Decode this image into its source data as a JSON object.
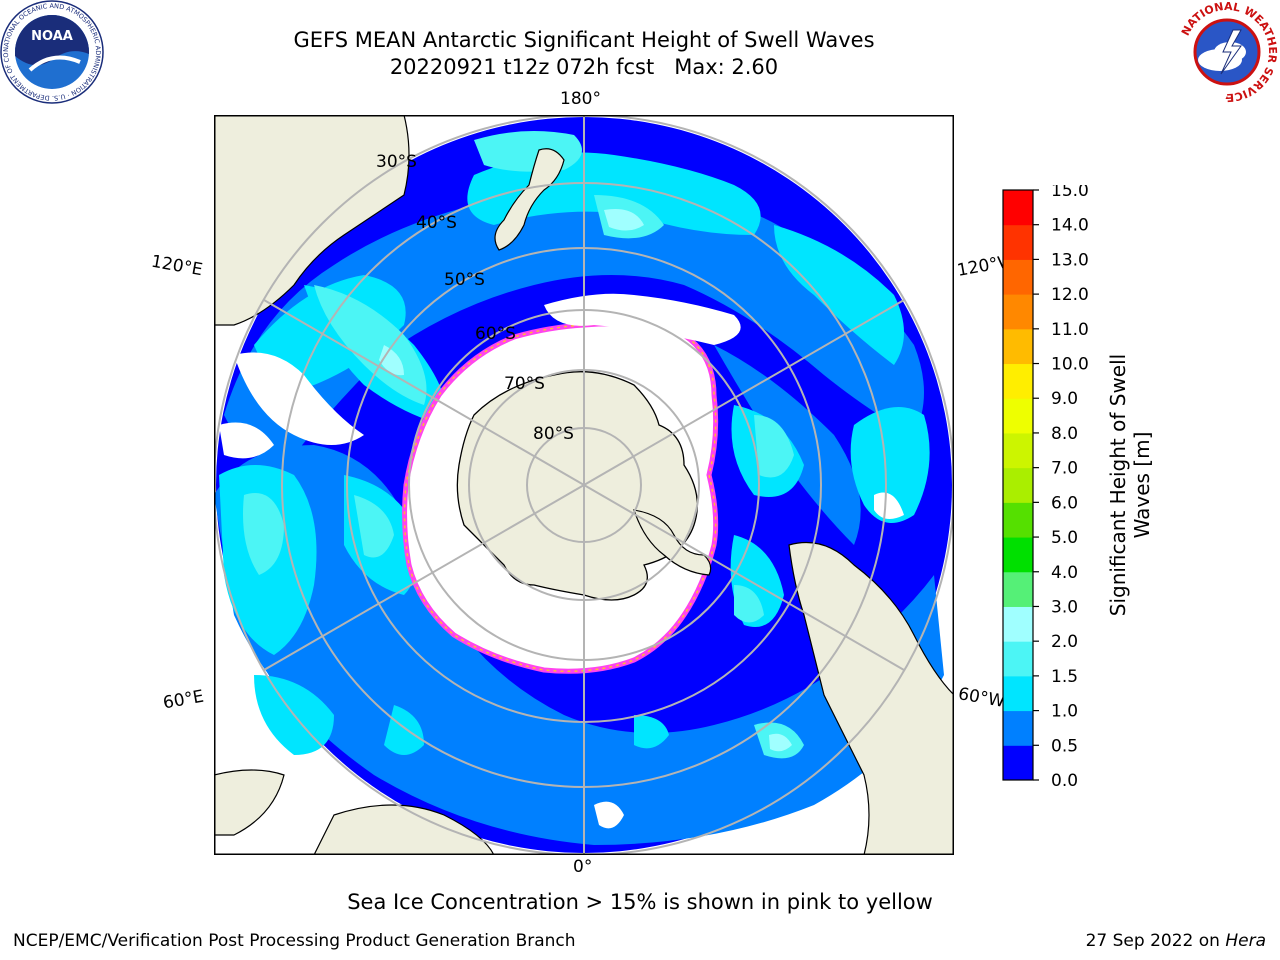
{
  "header": {
    "title_line1": "GEFS MEAN Antarctic Significant Height of Swell Waves",
    "title_line2": "20220921 t12z 072h fcst   Max: 2.60"
  },
  "logos": {
    "left": "noaa-logo",
    "left_text": "NOAA",
    "left_ring_text": "NATIONAL OCEANIC AND ATMOSPHERIC ADMINISTRATION · U.S. DEPARTMENT OF COMMERCE",
    "right": "national-weather-service-logo",
    "right_ring_text": "NATIONAL WEATHER SERVICE"
  },
  "map": {
    "projection": "south-polar-stereographic",
    "longitude_labels": {
      "top": "180°",
      "bottom": "0°",
      "upper_left": "120°E",
      "upper_right": "120°W",
      "lower_left": "60°E",
      "lower_right": "60°W"
    },
    "latitude_labels": [
      "30°S",
      "40°S",
      "50°S",
      "60°S",
      "70°S",
      "80°S"
    ],
    "colors": {
      "land": "#eeeedd",
      "sea_ice": "#ffffff",
      "ice_edge": "#ff44ee",
      "ice_edge_inner": "#ffbb33",
      "graticule": "#b4b4b4"
    },
    "field_max": 2.6
  },
  "colorbar": {
    "label": "Significant Height of Swell Waves [m]",
    "ticks": [
      "0.0",
      "0.5",
      "1.0",
      "1.5",
      "2.0",
      "3.0",
      "4.0",
      "5.0",
      "6.0",
      "7.0",
      "8.0",
      "9.0",
      "10.0",
      "11.0",
      "12.0",
      "13.0",
      "14.0",
      "15.0"
    ],
    "colors": [
      "#0000ff",
      "#0080ff",
      "#00e5ff",
      "#4cf5f5",
      "#a0ffff",
      "#55f077",
      "#00e000",
      "#55e000",
      "#aaee00",
      "#ccf500",
      "#eeff00",
      "#ffee00",
      "#ffbb00",
      "#ff8800",
      "#ff6600",
      "#ff3300",
      "#ff0000"
    ]
  },
  "caption": "Sea Ice Concentration > 15% is shown in pink to yellow",
  "footer": {
    "left": "NCEP/EMC/Verification Post Processing Product Generation Branch",
    "right_prefix": "27 Sep 2022 on ",
    "right_host": "Hera"
  }
}
